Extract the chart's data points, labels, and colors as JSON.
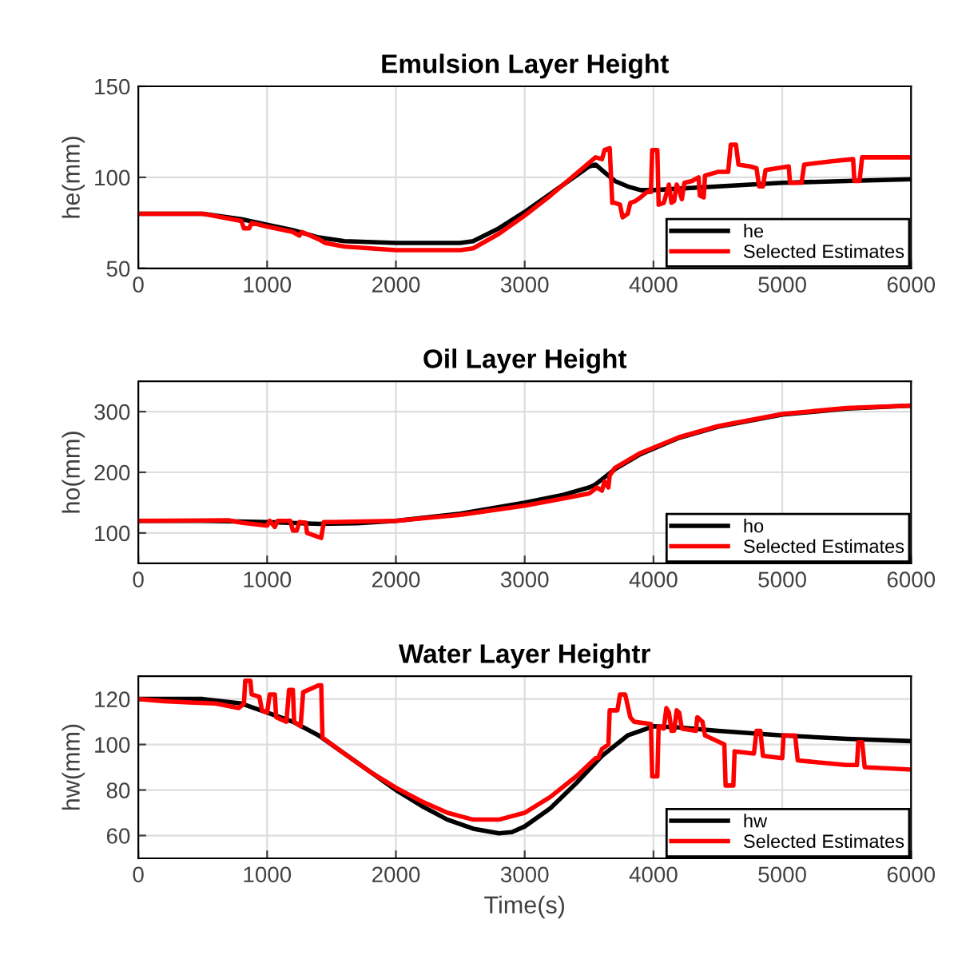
{
  "chart_data": [
    {
      "type": "line",
      "title": "Emulsion Layer Height",
      "ylabel": "he(mm)",
      "xlim": [
        0,
        6000
      ],
      "xticks": [
        0,
        1000,
        2000,
        3000,
        4000,
        5000,
        6000
      ],
      "ylim": [
        50,
        150
      ],
      "yticks": [
        50,
        100,
        150
      ],
      "grid": true,
      "legend": "bottom right",
      "line_style": "solid",
      "series": [
        {
          "name": "he",
          "color": "#000000",
          "x": [
            0,
            500,
            800,
            1000,
            1200,
            1400,
            1600,
            2000,
            2500,
            2600,
            2800,
            3000,
            3200,
            3400,
            3500,
            3550,
            3600,
            3700,
            3800,
            3900,
            4000,
            4500,
            5000,
            5500,
            6000
          ],
          "values": [
            80,
            80,
            77,
            74,
            71,
            67,
            65,
            64,
            64,
            65,
            72,
            81,
            91,
            101,
            106,
            107,
            104,
            98,
            95,
            93,
            93,
            95,
            97,
            98,
            99
          ]
        },
        {
          "name": "Selected Estimates",
          "color": "#ff0000",
          "x": [
            0,
            500,
            800,
            820,
            860,
            880,
            1000,
            1200,
            1250,
            1270,
            1400,
            1450,
            1600,
            2000,
            2500,
            2600,
            2800,
            3000,
            3200,
            3400,
            3550,
            3600,
            3620,
            3660,
            3680,
            3700,
            3740,
            3760,
            3800,
            3820,
            3860,
            3900,
            3950,
            3980,
            3990,
            4030,
            4040,
            4080,
            4100,
            4120,
            4140,
            4160,
            4180,
            4200,
            4220,
            4240,
            4300,
            4350,
            4360,
            4390,
            4400,
            4500,
            4580,
            4600,
            4640,
            4660,
            4750,
            4800,
            4820,
            4850,
            4870,
            5050,
            5060,
            5150,
            5170,
            5400,
            5550,
            5560,
            5600,
            5620,
            6000
          ],
          "values": [
            80,
            80,
            76,
            72,
            72,
            75,
            73,
            70,
            68,
            70,
            66,
            64,
            62,
            60,
            60,
            61,
            69,
            79,
            90,
            102,
            111,
            110,
            115,
            116,
            86,
            86,
            85,
            78,
            80,
            86,
            87,
            89,
            92,
            92,
            115,
            115,
            85,
            86,
            91,
            96,
            86,
            87,
            96,
            93,
            88,
            97,
            98,
            100,
            90,
            89,
            101,
            103,
            103,
            118,
            118,
            107,
            106,
            105,
            95,
            95,
            104,
            106,
            97,
            97,
            107,
            109,
            110,
            98,
            98,
            111,
            111
          ]
        }
      ]
    },
    {
      "type": "line",
      "title": "Oil Layer Height",
      "ylabel": "ho(mm)",
      "xlim": [
        0,
        6000
      ],
      "xticks": [
        0,
        1000,
        2000,
        3000,
        4000,
        5000,
        6000
      ],
      "ylim": [
        50,
        350
      ],
      "yticks": [
        100,
        200,
        300
      ],
      "grid": true,
      "legend": "bottom right",
      "line_style": "solid",
      "series": [
        {
          "name": "ho",
          "color": "#000000",
          "x": [
            0,
            500,
            1000,
            1400,
            1700,
            2000,
            2500,
            3000,
            3300,
            3500,
            3550,
            3700,
            3900,
            4200,
            4500,
            5000,
            5500,
            6000
          ],
          "values": [
            120,
            120,
            118,
            115,
            116,
            120,
            132,
            150,
            163,
            175,
            180,
            205,
            230,
            257,
            275,
            295,
            305,
            310
          ]
        },
        {
          "name": "Selected Estimates",
          "color": "#ff0000",
          "x": [
            0,
            700,
            800,
            1000,
            1020,
            1060,
            1080,
            1180,
            1200,
            1230,
            1250,
            1300,
            1310,
            1420,
            1440,
            1500,
            2000,
            2500,
            3000,
            3300,
            3500,
            3560,
            3600,
            3620,
            3650,
            3660,
            3700,
            3900,
            4200,
            4500,
            5000,
            5500,
            6000
          ],
          "values": [
            120,
            121,
            117,
            112,
            120,
            110,
            120,
            120,
            104,
            104,
            118,
            117,
            100,
            92,
            118,
            118,
            120,
            130,
            145,
            157,
            165,
            175,
            170,
            185,
            175,
            195,
            207,
            232,
            258,
            276,
            296,
            306,
            310
          ]
        }
      ]
    },
    {
      "type": "line",
      "title": "Water Layer Heightr",
      "ylabel": "hw(mm)",
      "xlabel": "Time(s)",
      "xlim": [
        0,
        6000
      ],
      "xticks": [
        0,
        1000,
        2000,
        3000,
        4000,
        5000,
        6000
      ],
      "ylim": [
        50,
        130
      ],
      "yticks": [
        60,
        80,
        100,
        120
      ],
      "grid": true,
      "legend": "bottom right",
      "line_style": "solid",
      "series": [
        {
          "name": "hw",
          "color": "#000000",
          "x": [
            0,
            500,
            800,
            1000,
            1200,
            1400,
            1600,
            1800,
            2000,
            2200,
            2400,
            2600,
            2800,
            2900,
            3000,
            3200,
            3400,
            3600,
            3800,
            4000,
            4200,
            4500,
            5000,
            5500,
            6000
          ],
          "values": [
            120,
            120,
            118,
            114,
            110,
            104,
            96,
            88,
            80,
            73,
            67,
            63,
            61,
            61.5,
            64,
            72,
            83,
            95,
            104,
            108,
            107.5,
            106,
            104,
            102.5,
            101.5
          ]
        },
        {
          "name": "Selected Estimates",
          "color": "#ff0000",
          "x": [
            0,
            200,
            400,
            600,
            780,
            820,
            830,
            870,
            880,
            940,
            960,
            1000,
            1020,
            1060,
            1070,
            1150,
            1170,
            1200,
            1210,
            1260,
            1280,
            1400,
            1420,
            1430,
            1600,
            1800,
            2000,
            2200,
            2400,
            2600,
            2800,
            3000,
            3200,
            3400,
            3550,
            3570,
            3600,
            3650,
            3660,
            3720,
            3740,
            3780,
            3800,
            3820,
            3850,
            3980,
            3990,
            4030,
            4040,
            4080,
            4100,
            4120,
            4140,
            4160,
            4180,
            4200,
            4220,
            4330,
            4340,
            4380,
            4400,
            4550,
            4560,
            4620,
            4630,
            4780,
            4800,
            4830,
            4850,
            5000,
            5010,
            5100,
            5120,
            5500,
            5580,
            5590,
            5620,
            5640,
            6000
          ],
          "values": [
            120,
            119,
            118.5,
            118,
            116,
            118,
            128,
            128,
            122,
            121,
            115,
            114,
            122,
            122,
            112,
            110,
            124,
            124,
            110,
            108,
            123,
            126,
            126,
            103,
            96,
            88,
            81,
            75,
            70,
            67,
            67,
            70,
            77,
            86,
            94,
            94,
            98,
            100,
            115,
            115,
            122,
            122,
            117,
            112,
            110,
            109,
            86,
            86,
            108,
            107,
            116,
            114,
            106,
            106,
            115,
            114,
            107,
            106,
            112,
            110,
            104,
            100,
            82,
            82,
            97,
            96,
            106,
            106,
            95,
            94,
            104,
            104,
            93,
            91,
            91,
            101,
            101,
            90,
            89
          ]
        }
      ]
    }
  ]
}
